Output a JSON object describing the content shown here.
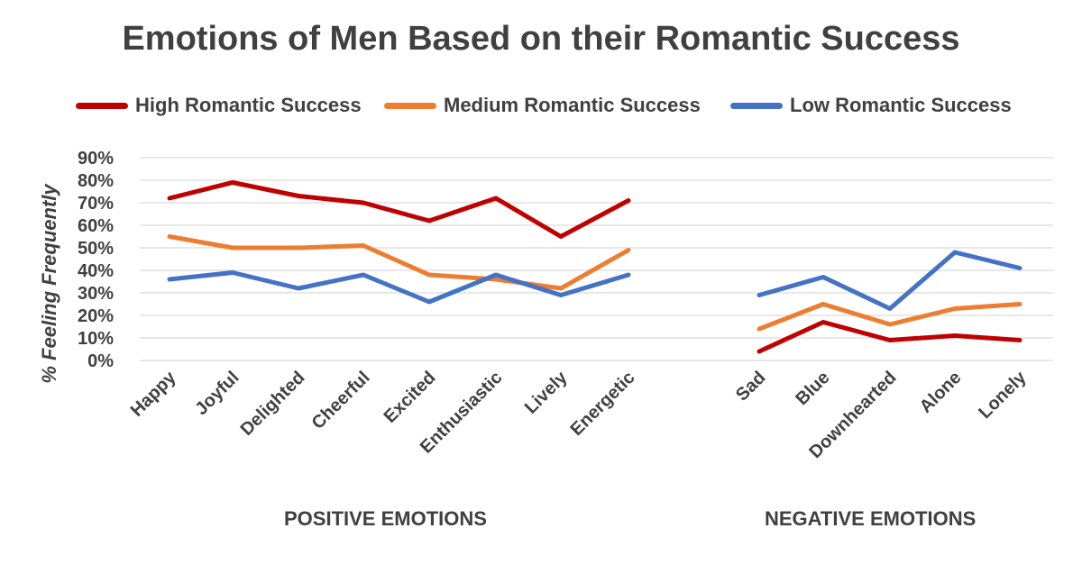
{
  "chart_data": {
    "type": "line",
    "title": "Emotions of Men Based on their Romantic Success",
    "ylabel": "% Feeling Frequently",
    "ylim": [
      0,
      90
    ],
    "yticks": [
      "0%",
      "10%",
      "20%",
      "30%",
      "40%",
      "50%",
      "60%",
      "70%",
      "80%",
      "90%"
    ],
    "legend_position": "top",
    "grid": true,
    "groups": [
      {
        "label": "POSITIVE EMOTIONS",
        "categories": [
          "Happy",
          "Joyful",
          "Delighted",
          "Cheerful",
          "Excited",
          "Enthusiastic",
          "Lively",
          "Energetic"
        ]
      },
      {
        "label": "NEGATIVE EMOTIONS",
        "categories": [
          "Sad",
          "Blue",
          "Downhearted",
          "Alone",
          "Lonely"
        ]
      }
    ],
    "series": [
      {
        "name": "High Romantic Success",
        "color": "#c00000",
        "values": [
          [
            72,
            79,
            73,
            70,
            62,
            72,
            55,
            71
          ],
          [
            4,
            17,
            9,
            11,
            9
          ]
        ]
      },
      {
        "name": "Medium Romantic Success",
        "color": "#ed7d31",
        "values": [
          [
            55,
            50,
            50,
            51,
            38,
            36,
            32,
            49
          ],
          [
            14,
            25,
            16,
            23,
            25
          ]
        ]
      },
      {
        "name": "Low Romantic Success",
        "color": "#4472c4",
        "values": [
          [
            36,
            39,
            32,
            38,
            26,
            38,
            29,
            38
          ],
          [
            29,
            37,
            23,
            48,
            41
          ]
        ]
      }
    ]
  }
}
